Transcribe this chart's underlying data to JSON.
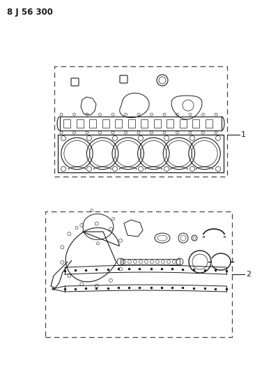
{
  "title": "8 J 56 300",
  "background_color": "#ffffff",
  "line_color": "#1a1a1a",
  "dash_color": "#444444",
  "label1": "1",
  "label2": "2",
  "fig_width": 3.99,
  "fig_height": 5.33,
  "dpi": 100
}
